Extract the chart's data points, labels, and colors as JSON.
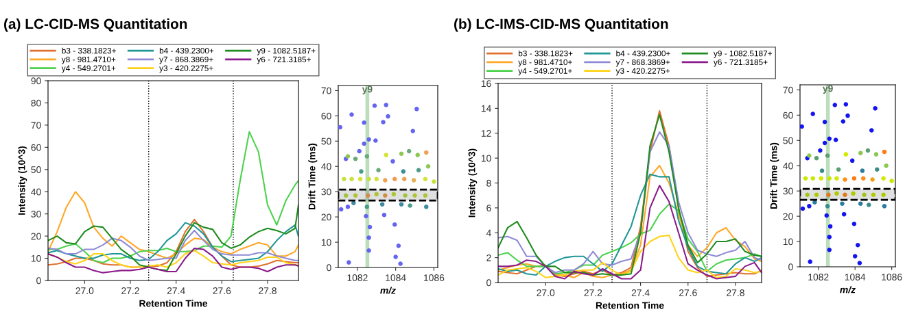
{
  "chart_data": [
    {
      "type": "line",
      "title": "(a) LC-CID-MS Quantitation",
      "xlabel": "Retention Time",
      "ylabel": "Intensity (10^3)",
      "x": [
        26.84,
        26.88,
        26.92,
        26.96,
        27.0,
        27.04,
        27.08,
        27.12,
        27.16,
        27.2,
        27.24,
        27.28,
        27.32,
        27.36,
        27.4,
        27.44,
        27.48,
        27.52,
        27.56,
        27.6,
        27.64,
        27.68,
        27.72,
        27.76,
        27.8,
        27.84,
        27.88,
        27.92,
        27.935
      ],
      "xlim": [
        26.84,
        27.935
      ],
      "xticks": [
        {
          "value": 27.0,
          "label": "27.0"
        },
        {
          "value": 27.2,
          "label": "27.2"
        },
        {
          "value": 27.4,
          "label": "27.4"
        },
        {
          "value": 27.6,
          "label": "27.6"
        },
        {
          "value": 27.8,
          "label": "27.8"
        }
      ],
      "ylim": [
        0,
        90
      ],
      "yticks": [
        0,
        10,
        20,
        30,
        40,
        50,
        60,
        70,
        80,
        90
      ],
      "legend": "top",
      "line_style": "solid",
      "marker": "none",
      "series": [
        {
          "name": "b3 - 338.1823+",
          "color": "#e0702e",
          "values": [
            7,
            7.5,
            8.5,
            10,
            10,
            9,
            7.5,
            7,
            7,
            6,
            6,
            6.5,
            6.5,
            8,
            13,
            22,
            27.5,
            22,
            15,
            11,
            7,
            6,
            6,
            6.5,
            7.5,
            9,
            8.5,
            8,
            8
          ]
        },
        {
          "name": "y8 - 981.4710+",
          "color": "#ffa726",
          "values": [
            13,
            22,
            33,
            40,
            35,
            24,
            19,
            15.5,
            20,
            17,
            14,
            13,
            11.5,
            10,
            12,
            16,
            19,
            18.5,
            15,
            13,
            12,
            14,
            15.5,
            17,
            16,
            11,
            11,
            13,
            16
          ]
        },
        {
          "name": "y4 - 549.2701+",
          "color": "#4cd24c",
          "values": [
            14,
            14,
            15.5,
            16.5,
            13,
            9,
            8,
            10,
            10,
            11,
            13,
            13.5,
            13.5,
            14.5,
            13,
            13,
            13.5,
            15.5,
            15.5,
            15,
            20,
            45,
            67,
            58,
            34,
            25,
            36,
            43,
            45
          ]
        },
        {
          "name": "b4 - 439.2300+",
          "color": "#1f9696",
          "values": [
            12.5,
            13.5,
            12,
            11,
            10,
            10,
            11.5,
            12,
            12,
            10,
            9,
            9.5,
            13,
            18,
            21,
            26,
            24.5,
            21,
            15,
            11,
            8.5,
            9,
            9.5,
            10,
            13,
            18,
            22,
            25,
            20
          ]
        },
        {
          "name": "y7 - 868.3869+",
          "color": "#8e8ad6",
          "values": [
            14.5,
            14,
            12,
            12,
            14,
            14,
            16,
            19,
            18,
            15,
            11,
            9,
            9.5,
            10,
            10,
            18,
            22.5,
            18,
            14,
            12,
            11.5,
            11.5,
            11.5,
            12.5,
            12.5,
            11,
            10,
            9,
            9
          ]
        },
        {
          "name": "y3 - 420.2275+",
          "color": "#ffd21a",
          "values": [
            12,
            10.5,
            8.5,
            7.5,
            9,
            12,
            12,
            9,
            7,
            6,
            6,
            6.5,
            7,
            6,
            8,
            12,
            13.5,
            11,
            8,
            7.5,
            7,
            8,
            8.5,
            9,
            10.5,
            10.5,
            8,
            7,
            7
          ]
        },
        {
          "name": "y9 - 1082.5187+",
          "color": "#1e8c1e",
          "values": [
            18,
            20,
            17,
            16.5,
            22,
            24.5,
            24,
            19,
            14,
            11,
            7,
            6,
            5,
            4.5,
            12,
            20,
            26,
            24,
            23,
            17,
            14.5,
            16,
            19.5,
            22,
            23.5,
            22.5,
            21,
            23.5,
            34
          ]
        },
        {
          "name": "y6 - 721.3185+",
          "color": "#8b1a8b",
          "values": [
            12,
            10.5,
            8,
            6,
            6,
            4.5,
            3.5,
            4,
            4.5,
            4.5,
            5,
            6,
            5,
            4,
            4,
            10,
            14.5,
            14,
            11,
            6,
            5,
            6,
            6,
            5.5,
            4,
            6,
            7,
            7,
            6.5
          ]
        }
      ],
      "ref_lines": [
        {
          "axis": "x",
          "value": 27.28,
          "color": "#000000",
          "line_style": "dotted"
        },
        {
          "axis": "x",
          "value": 27.65,
          "color": "#000000",
          "line_style": "dotted"
        }
      ]
    },
    {
      "type": "scatter",
      "xlabel": "m/z",
      "ylabel": "Drift Time (ms)",
      "xlim": [
        1081,
        1086.2
      ],
      "xticks": [
        1082,
        1084,
        1086
      ],
      "ylim": [
        0,
        72
      ],
      "yticks": [
        0,
        10,
        20,
        30,
        40,
        50,
        60,
        70
      ],
      "series": [
        {
          "color": "#6464f0",
          "x": [
            1081.1,
            1081.7,
            1082.35,
            1082.9,
            1083.5,
            1083.35,
            1083.6,
            1084.9,
            1085.1,
            1082.35,
            1082.6,
            1082.95,
            1082.45,
            1082.65,
            1082.6,
            1082.6,
            1083.4,
            1083.95,
            1084.15,
            1084.0,
            1084.25,
            1081.55,
            1081.15,
            1081.5,
            1083.85,
            1081.4,
            1082.1
          ],
          "values": [
            55.5,
            60.5,
            57.3,
            64,
            64.3,
            57.5,
            59.8,
            54,
            62.7,
            49,
            50.7,
            50.2,
            20.3,
            16,
            11.8,
            6.7,
            20.8,
            17,
            8.6,
            4.2,
            1.5,
            2,
            23,
            24,
            42,
            43,
            46
          ]
        },
        {
          "x": [
            1081.3,
            1081.7,
            1082.15,
            1082.6,
            1083.0,
            1083.45,
            1083.95,
            1084.45,
            1084.95,
            1085.55,
            1086.0,
            1081.4,
            1081.9,
            1082.55,
            1083.0,
            1083.45,
            1083.9,
            1084.5,
            1085.0,
            1085.55,
            1081.5,
            1081.9,
            1082.5,
            1083.5,
            1084.3,
            1084.7,
            1085.15,
            1085.6,
            1081.8,
            1082.5,
            1083.3,
            1084.3,
            1084.75,
            1085.6,
            1082.2,
            1083.1,
            1084.4,
            1085.2,
            1085.7
          ],
          "values": [
            35,
            35,
            35,
            35,
            35,
            34.5,
            35,
            35,
            34.5,
            35,
            34,
            28.5,
            28.5,
            28.5,
            29,
            28.5,
            29,
            28.5,
            28.5,
            28.5,
            44,
            43,
            44,
            44.5,
            45,
            46,
            44.5,
            45.5,
            25.5,
            24,
            25,
            25,
            24.5,
            24,
            38,
            38.5,
            38,
            38.5,
            40
          ],
          "colors": [
            "#c8e03c",
            "#c8e03c",
            "#d4e23a",
            "#c8e03c",
            "#d4e23a",
            "#f0a050",
            "#f09a50",
            "#f0a050",
            "#e8b050",
            "#d4e23a",
            "#c8e03c",
            "#b8e040",
            "#c8e03c",
            "#f0a050",
            "#c8e03c",
            "#f0a050",
            "#c8e03c",
            "#b8e040",
            "#c8e03c",
            "#c8e03c",
            "#8cc850",
            "#6aaa78",
            "#6aaa78",
            "#d4e23a",
            "#8cc850",
            "#6aaa78",
            "#8cc850",
            "#f0a050",
            "#3c8c9c",
            "#4a9c88",
            "#3c8c9c",
            "#3c8c9c",
            "#4a9c88",
            "#3c8c9c",
            "#4a9c88",
            "#6aaa78",
            "#3c8c9c",
            "#4a9c88",
            "#8cc850"
          ]
        }
      ],
      "ref_lines": [
        {
          "axis": "x",
          "value": 1082.52,
          "label": "y9",
          "color": "#9fd09f",
          "line_style": "solid"
        }
      ],
      "bands": [
        {
          "axis": "y",
          "from": 26.5,
          "to": 30.8,
          "color": "#000000"
        }
      ]
    },
    {
      "type": "line",
      "title": "(b) LC-IMS-CID-MS Quantitation",
      "xlabel": "Retention Time",
      "ylabel": "Intensity (10^3)",
      "x": [
        26.8,
        26.84,
        26.88,
        26.92,
        26.96,
        27.0,
        27.04,
        27.08,
        27.12,
        27.16,
        27.2,
        27.24,
        27.28,
        27.32,
        27.36,
        27.4,
        27.44,
        27.48,
        27.52,
        27.56,
        27.6,
        27.64,
        27.68,
        27.72,
        27.76,
        27.8,
        27.84,
        27.88,
        27.91
      ],
      "xlim": [
        26.8,
        27.91
      ],
      "xticks": [
        {
          "value": 27.0,
          "label": "27.0"
        },
        {
          "value": 27.2,
          "label": "27.2"
        },
        {
          "value": 27.4,
          "label": "27.4"
        },
        {
          "value": 27.6,
          "label": "27.6"
        },
        {
          "value": 27.8,
          "label": "27.8"
        }
      ],
      "ylim": [
        0,
        16
      ],
      "yticks": [
        0,
        2,
        4,
        6,
        8,
        10,
        12,
        14,
        16
      ],
      "legend": "top",
      "line_style": "solid",
      "marker": "none",
      "series": [
        {
          "name": "b3 - 338.1823+",
          "color": "#e0702e",
          "values": [
            0.9,
            0.8,
            0.7,
            1.0,
            1.3,
            1.3,
            0.6,
            0.5,
            0.7,
            0.9,
            0.7,
            1.0,
            0.6,
            0.8,
            1.2,
            4.5,
            10.5,
            13.8,
            11,
            6,
            2.5,
            1.2,
            0.5,
            0.6,
            0.7,
            0.8,
            0.7,
            0.7,
            1.0
          ]
        },
        {
          "name": "y8 - 981.4710+",
          "color": "#ffa726",
          "values": [
            1.0,
            1.2,
            1.4,
            1.5,
            1.3,
            1.4,
            0.7,
            0.6,
            0.4,
            0.8,
            0.5,
            0.4,
            0.6,
            0.7,
            1.0,
            3,
            8.5,
            9.4,
            8,
            5.5,
            3,
            2.1,
            2.8,
            4.0,
            4.4,
            3.4,
            2.9,
            1.9,
            1.7
          ]
        },
        {
          "name": "y4 - 549.2701+",
          "color": "#4cd24c",
          "values": [
            2.2,
            2.4,
            1.8,
            1.3,
            1.3,
            1.3,
            0.7,
            0.8,
            1.0,
            1.4,
            1.4,
            2.2,
            2.5,
            2.8,
            3.2,
            3.9,
            4.2,
            5.5,
            6.3,
            5.8,
            3.5,
            2.5,
            0.9,
            1.5,
            1.8,
            1.9,
            2.0,
            2.3,
            2.1
          ]
        },
        {
          "name": "b4 - 439.2300+",
          "color": "#1f9696",
          "values": [
            1.1,
            0.9,
            1.0,
            0.7,
            0.6,
            1.3,
            1.7,
            2.0,
            2.1,
            2.1,
            1.5,
            0.9,
            1.5,
            3.0,
            4.5,
            7,
            8.7,
            8.5,
            8.5,
            5,
            2.8,
            1.3,
            0.9,
            0.8,
            0.7,
            1.5,
            2.0,
            1.7,
            2.0
          ]
        },
        {
          "name": "y7 - 868.3869+",
          "color": "#8e8ad6",
          "values": [
            3.6,
            3.7,
            3.4,
            2.1,
            2.1,
            1.3,
            0.8,
            1.0,
            1.0,
            1.5,
            2.5,
            1.5,
            1.4,
            1.7,
            1.9,
            4,
            10.5,
            12.1,
            11,
            6.5,
            4,
            2.6,
            2.3,
            2.1,
            2.4,
            2.6,
            3.3,
            2,
            1.8
          ]
        },
        {
          "name": "y3 - 420.2275+",
          "color": "#ffd21a",
          "values": [
            0.6,
            1.0,
            1.1,
            1.2,
            0.9,
            0.4,
            0.5,
            0.6,
            0.9,
            1.0,
            1.0,
            1.6,
            1.0,
            0.6,
            0.9,
            2.5,
            3.3,
            3.7,
            3.8,
            2,
            1.0,
            0.8,
            1.0,
            0.4,
            0.5,
            1.1,
            1.0,
            0.8,
            0.9
          ]
        },
        {
          "name": "y9 - 1082.5187+",
          "color": "#1e8c1e",
          "values": [
            2.8,
            4.4,
            4.9,
            3.6,
            2.2,
            1.3,
            1.3,
            0.8,
            0.8,
            0.8,
            0.6,
            0.7,
            0.6,
            0.6,
            0.7,
            4,
            11,
            13.5,
            10.5,
            6,
            3,
            1.6,
            2.3,
            3.3,
            3.3,
            3.5,
            2.5,
            2.2,
            2.1
          ]
        },
        {
          "name": "y6 - 721.3185+",
          "color": "#8b1a8b",
          "values": [
            1.3,
            1.3,
            1.4,
            1.8,
            1.7,
            1.3,
            0.5,
            0.3,
            0.9,
            0.7,
            0.6,
            1.1,
            0.7,
            0.3,
            0.3,
            1.0,
            6.0,
            7.8,
            6.5,
            4,
            1.5,
            1.0,
            0.6,
            0.3,
            0.4,
            0.5,
            1.3,
            1.6,
            0.8
          ]
        }
      ],
      "ref_lines": [
        {
          "axis": "x",
          "value": 27.28,
          "color": "#000000",
          "line_style": "dotted"
        },
        {
          "axis": "x",
          "value": 27.68,
          "color": "#000000",
          "line_style": "dotted"
        }
      ]
    },
    {
      "type": "scatter",
      "xlabel": "m/z",
      "ylabel": "Drift Time (ms)",
      "xlim": [
        1081,
        1086.2
      ],
      "xticks": [
        1082,
        1084,
        1086
      ],
      "ylim": [
        0,
        72
      ],
      "yticks": [
        0,
        10,
        20,
        30,
        40,
        50,
        60,
        70
      ],
      "series": [
        {
          "color": "#1414f0",
          "x": [
            1081.1,
            1081.7,
            1082.35,
            1082.9,
            1083.5,
            1083.35,
            1083.6,
            1084.9,
            1085.1,
            1082.35,
            1082.6,
            1082.95,
            1082.45,
            1082.65,
            1082.6,
            1082.6,
            1083.4,
            1083.95,
            1084.15,
            1084.0,
            1084.25,
            1081.55,
            1081.15,
            1081.5,
            1083.85,
            1081.4,
            1082.1
          ],
          "values": [
            55.5,
            60.5,
            57.3,
            64,
            64.3,
            57.5,
            59.8,
            54,
            62.7,
            49,
            50.7,
            50.2,
            20.3,
            16,
            11.8,
            6.7,
            20.8,
            17,
            8.6,
            4.2,
            1.5,
            2,
            23,
            24,
            42,
            43,
            46
          ]
        },
        {
          "x": [
            1081.3,
            1081.7,
            1082.15,
            1082.6,
            1083.0,
            1083.45,
            1083.95,
            1084.45,
            1084.95,
            1085.55,
            1086.0,
            1081.4,
            1081.9,
            1082.55,
            1083.0,
            1083.45,
            1083.9,
            1084.5,
            1085.0,
            1085.55,
            1081.5,
            1081.9,
            1082.5,
            1083.5,
            1084.3,
            1084.7,
            1085.15,
            1085.6,
            1081.8,
            1082.5,
            1083.3,
            1084.3,
            1084.75,
            1085.6,
            1082.2,
            1083.1,
            1084.4,
            1085.2,
            1085.7
          ],
          "values": [
            35,
            35,
            35,
            35,
            35,
            34.5,
            35,
            35,
            34.5,
            35,
            34,
            28.5,
            28.5,
            28.5,
            29,
            28.5,
            29,
            28.5,
            28.5,
            28.5,
            44,
            43,
            44,
            44.5,
            45,
            46,
            44.5,
            45.5,
            25.5,
            24,
            25,
            25,
            24.5,
            24,
            38,
            38.5,
            38,
            38.5,
            40
          ],
          "colors": [
            "#c8e800",
            "#c8e800",
            "#d4e800",
            "#c8e800",
            "#d4e800",
            "#ff8c1a",
            "#ff7a10",
            "#ff8c1a",
            "#f0a020",
            "#d4e800",
            "#c8e800",
            "#b8e020",
            "#c8e800",
            "#ff8c1a",
            "#c8e800",
            "#ff8c1a",
            "#c8e800",
            "#b8e020",
            "#c8e800",
            "#c8e800",
            "#8cc850",
            "#5aa070",
            "#5aa070",
            "#d4e800",
            "#8cc850",
            "#5aa070",
            "#8cc850",
            "#ff7a10",
            "#2c7c9c",
            "#3a8c88",
            "#2c7c9c",
            "#2c7c9c",
            "#3a8c88",
            "#2c7c9c",
            "#3a8c88",
            "#5aa070",
            "#2c7c9c",
            "#3a8c88",
            "#8cc850"
          ]
        }
      ],
      "ref_lines": [
        {
          "axis": "x",
          "value": 1082.52,
          "label": "y9",
          "color": "#9fd09f",
          "line_style": "solid"
        }
      ],
      "bands": [
        {
          "axis": "y",
          "from": 26.5,
          "to": 30.8,
          "color": "#000000"
        }
      ]
    }
  ]
}
